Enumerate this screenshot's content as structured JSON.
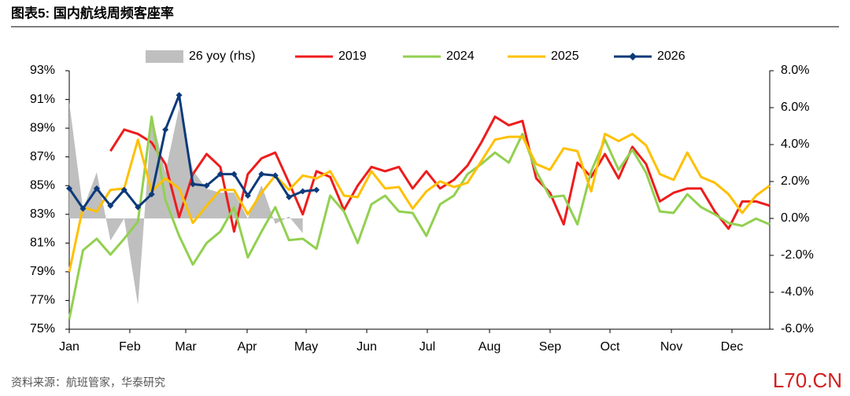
{
  "chart_data": {
    "type": "line",
    "title": "图表5:  国内航线周频客座率",
    "source": "资料来源：航班管家，华泰研究",
    "watermark": "L70.CN",
    "x": [
      0,
      1,
      2,
      3,
      4,
      5,
      6,
      7,
      8,
      9,
      10,
      11,
      12,
      13,
      14,
      15,
      16,
      17,
      18,
      19,
      20,
      21,
      22,
      23,
      24,
      25,
      26,
      27,
      28,
      29,
      30,
      31,
      32,
      33,
      34,
      35,
      36,
      37,
      38,
      39,
      40,
      41,
      42,
      43,
      44,
      45,
      46,
      47,
      48,
      49,
      50,
      51
    ],
    "xlim": [
      0,
      51
    ],
    "xticks": [
      {
        "value": 0,
        "label": "Jan"
      },
      {
        "value": 4.41,
        "label": "Feb"
      },
      {
        "value": 8.48,
        "label": "Mar"
      },
      {
        "value": 12.95,
        "label": "Apr"
      },
      {
        "value": 17.25,
        "label": "May"
      },
      {
        "value": 21.66,
        "label": "Jun"
      },
      {
        "value": 26.07,
        "label": "Jul"
      },
      {
        "value": 30.6,
        "label": "Aug"
      },
      {
        "value": 35.01,
        "label": "Sep"
      },
      {
        "value": 39.37,
        "label": "Oct"
      },
      {
        "value": 43.84,
        "label": "Nov"
      },
      {
        "value": 48.25,
        "label": "Dec"
      }
    ],
    "ylim": [
      75,
      93
    ],
    "yticks": [
      {
        "value": 75,
        "label": "75%"
      },
      {
        "value": 77,
        "label": "77%"
      },
      {
        "value": 79,
        "label": "79%"
      },
      {
        "value": 81,
        "label": "81%"
      },
      {
        "value": 83,
        "label": "83%"
      },
      {
        "value": 85,
        "label": "85%"
      },
      {
        "value": 87,
        "label": "87%"
      },
      {
        "value": 89,
        "label": "89%"
      },
      {
        "value": 91,
        "label": "91%"
      },
      {
        "value": 93,
        "label": "93%"
      }
    ],
    "y2lim": [
      -6,
      8
    ],
    "y2ticks": [
      {
        "value": -6,
        "label": "-6.0%"
      },
      {
        "value": -4,
        "label": "-4.0%"
      },
      {
        "value": -2,
        "label": "-2.0%"
      },
      {
        "value": 0,
        "label": "0.0%"
      },
      {
        "value": 2,
        "label": "2.0%"
      },
      {
        "value": 4,
        "label": "4.0%"
      },
      {
        "value": 6,
        "label": "6.0%"
      },
      {
        "value": 8,
        "label": "8.0%"
      }
    ],
    "series": [
      {
        "name": "26 yoy (rhs)",
        "color": "#bfbfbf",
        "kind": "area",
        "axis": "y2",
        "values": [
          6.3,
          0.5,
          2.5,
          -1.2,
          0.0,
          -4.7,
          5.6,
          2.5,
          6.0,
          2.6,
          1.6,
          1.4,
          1.4,
          0.0,
          1.8,
          -0.3,
          0.1,
          -0.8,
          null,
          null,
          null,
          null,
          null,
          null,
          null,
          null,
          null,
          null,
          null,
          null,
          null,
          null,
          null,
          null,
          null,
          null,
          null,
          null,
          null,
          null,
          null,
          null,
          null,
          null,
          null,
          null,
          null,
          null,
          null,
          null,
          null,
          null
        ]
      },
      {
        "name": "2019",
        "color": "#ee1c1c",
        "values": [
          null,
          null,
          null,
          87.4,
          88.9,
          88.6,
          88.0,
          86.5,
          82.8,
          85.8,
          87.2,
          86.3,
          81.8,
          85.8,
          86.9,
          87.3,
          85.2,
          83.0,
          86.0,
          85.6,
          83.3,
          85.0,
          86.3,
          86.0,
          86.3,
          84.8,
          86.0,
          84.8,
          85.4,
          86.4,
          88.0,
          89.8,
          89.2,
          89.5,
          85.5,
          84.5,
          82.3,
          86.6,
          85.6,
          87.2,
          85.5,
          87.7,
          86.5,
          83.9,
          84.5,
          84.8,
          84.8,
          83.2,
          82.0,
          83.9,
          83.9,
          83.6
        ]
      },
      {
        "name": "2024",
        "color": "#92d050",
        "values": [
          75.7,
          80.5,
          81.3,
          80.2,
          81.3,
          82.5,
          89.8,
          84.0,
          81.5,
          79.5,
          81.0,
          81.8,
          83.5,
          80.0,
          81.8,
          83.5,
          81.2,
          81.3,
          80.6,
          84.3,
          83.2,
          81.0,
          83.7,
          84.3,
          83.2,
          83.1,
          81.5,
          83.7,
          84.3,
          85.8,
          86.5,
          87.3,
          86.6,
          88.6,
          86.0,
          84.2,
          84.3,
          82.3,
          86.0,
          88.2,
          86.1,
          87.5,
          85.9,
          83.2,
          83.1,
          84.4,
          83.5,
          83.0,
          82.4,
          82.2,
          82.7,
          82.3
        ]
      },
      {
        "name": "2025",
        "color": "#ffc000",
        "values": [
          79.0,
          83.5,
          83.2,
          84.7,
          84.8,
          88.2,
          84.6,
          85.5,
          84.8,
          82.4,
          83.6,
          84.7,
          84.7,
          83.0,
          84.5,
          85.7,
          84.7,
          85.7,
          85.5,
          86.0,
          84.3,
          84.2,
          86.0,
          84.8,
          84.9,
          83.4,
          84.6,
          85.3,
          84.9,
          85.2,
          86.7,
          88.2,
          88.4,
          88.4,
          86.5,
          86.1,
          87.6,
          87.4,
          84.6,
          88.6,
          88.1,
          88.6,
          87.8,
          85.8,
          85.4,
          87.3,
          85.6,
          85.2,
          84.4,
          83.1,
          84.3,
          85.0
        ]
      },
      {
        "name": "2026",
        "color": "#0d3a7a",
        "marker": "diamond",
        "values": [
          84.8,
          83.4,
          84.8,
          83.6,
          84.7,
          83.5,
          84.4,
          88.9,
          91.3,
          85.1,
          85.0,
          85.8,
          85.8,
          84.3,
          85.8,
          85.7,
          84.2,
          84.6,
          84.7,
          null,
          null,
          null,
          null,
          null,
          null,
          null,
          null,
          null,
          null,
          null,
          null,
          null,
          null,
          null,
          null,
          null,
          null,
          null,
          null,
          null,
          null,
          null,
          null,
          null,
          null,
          null,
          null,
          null,
          null,
          null,
          null,
          null
        ]
      }
    ]
  }
}
